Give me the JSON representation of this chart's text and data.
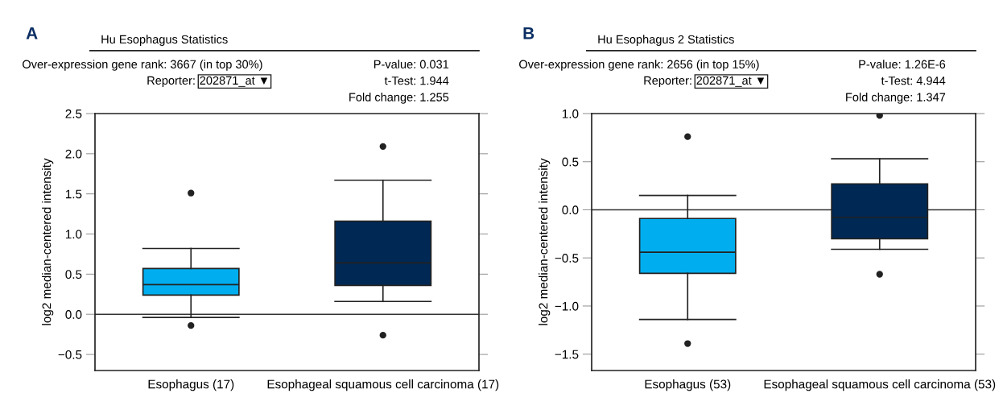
{
  "chart_data": [
    {
      "type": "box",
      "title": "Hu Esophagus Statistics",
      "ylabel": "log2 median-centered intensity",
      "annotations": [
        "A",
        "Over-expression gene rank: 3667 (in top 30%)",
        "Reporter:",
        "202871_at ▼",
        "P-value: 0.031",
        "t-Test: 1.944",
        "Fold change: 1.255"
      ],
      "categories": [
        "Esophagus (17)",
        "Esophageal squamous cell carcinoma (17)"
      ],
      "colors": [
        "#00aeef",
        "#002855"
      ],
      "boxes": [
        {
          "low": -0.04,
          "q1": 0.24,
          "median": 0.37,
          "q3": 0.57,
          "high": 0.82,
          "outliers": [
            1.51,
            -0.14
          ]
        },
        {
          "low": 0.16,
          "q1": 0.36,
          "median": 0.64,
          "q3": 1.16,
          "high": 1.67,
          "outliers": [
            2.09,
            -0.26
          ]
        }
      ],
      "ylim": [
        -0.7,
        2.5
      ],
      "yticks": [
        -0.5,
        {
          "value": 0,
          "label": "0.0"
        },
        0.5,
        {
          "value": 1,
          "label": "1.0"
        },
        1.5,
        {
          "value": 2,
          "label": "2.0"
        },
        2.5
      ],
      "ref_lines": [
        {
          "axis": "y",
          "value": 0,
          "color": "#333333"
        }
      ]
    },
    {
      "type": "box",
      "title": "Hu Esophagus 2 Statistics",
      "ylabel": "log2 median-centered intensity",
      "annotations": [
        "B",
        "Over-expression gene rank: 2656 (in top 15%)",
        "Reporter:",
        "202871_at ▼",
        "P-value: 1.26E-6",
        "t-Test: 4.944",
        "Fold change: 1.347"
      ],
      "categories": [
        "Esophagus (53)",
        "Esophageal squamous cell carcinoma (53)"
      ],
      "colors": [
        "#00aeef",
        "#002855"
      ],
      "boxes": [
        {
          "low": -1.14,
          "q1": -0.66,
          "median": -0.44,
          "q3": -0.09,
          "high": 0.15,
          "outliers": [
            0.76,
            -1.39
          ]
        },
        {
          "low": -0.41,
          "q1": -0.3,
          "median": -0.08,
          "q3": 0.27,
          "high": 0.53,
          "outliers": [
            0.98,
            -0.67
          ]
        }
      ],
      "ylim": [
        -1.67,
        1.0
      ],
      "yticks": [
        -1.5,
        {
          "value": -1,
          "label": "−1.0"
        },
        -0.5,
        {
          "value": 0,
          "label": "0.0"
        },
        0.5,
        {
          "value": 1,
          "label": "1.0"
        }
      ],
      "ref_lines": [
        {
          "axis": "y",
          "value": 0,
          "color": "#333333"
        }
      ]
    }
  ]
}
